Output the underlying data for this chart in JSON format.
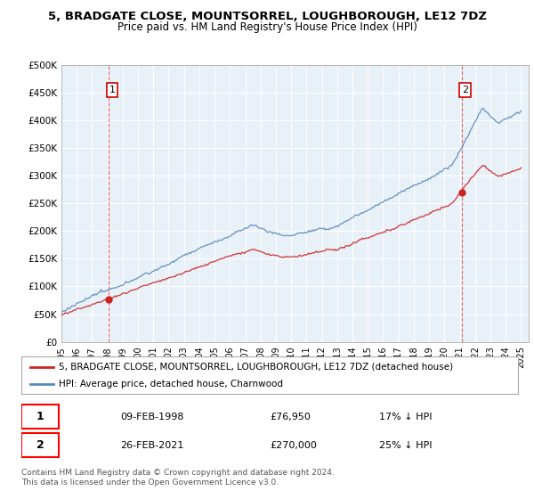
{
  "title": "5, BRADGATE CLOSE, MOUNTSORREL, LOUGHBOROUGH, LE12 7DZ",
  "subtitle": "Price paid vs. HM Land Registry's House Price Index (HPI)",
  "ylim": [
    0,
    500000
  ],
  "yticks": [
    0,
    50000,
    100000,
    150000,
    200000,
    250000,
    300000,
    350000,
    400000,
    450000,
    500000
  ],
  "ytick_labels": [
    "£0",
    "£50K",
    "£100K",
    "£150K",
    "£200K",
    "£250K",
    "£300K",
    "£350K",
    "£400K",
    "£450K",
    "£500K"
  ],
  "hpi_color": "#5588bb",
  "price_color": "#cc2222",
  "plot_bg_color": "#e8f0f8",
  "fig_bg_color": "#ffffff",
  "grid_color": "#ffffff",
  "sale1_year": 1998.1,
  "sale1_price": 76950,
  "sale2_year": 2021.15,
  "sale2_price": 270000,
  "hpi_at_sale1": 92711,
  "hpi_at_sale2": 360000,
  "legend_property": "5, BRADGATE CLOSE, MOUNTSORREL, LOUGHBOROUGH, LE12 7DZ (detached house)",
  "legend_hpi": "HPI: Average price, detached house, Charnwood",
  "annotation1_date": "09-FEB-1998",
  "annotation1_price": "£76,950",
  "annotation1_pct": "17% ↓ HPI",
  "annotation2_date": "26-FEB-2021",
  "annotation2_price": "£270,000",
  "annotation2_pct": "25% ↓ HPI",
  "footer": "Contains HM Land Registry data © Crown copyright and database right 2024.\nThis data is licensed under the Open Government Licence v3.0.",
  "title_fontsize": 9.5,
  "subtitle_fontsize": 8.5,
  "tick_fontsize": 7.5,
  "legend_fontsize": 7.5,
  "table_fontsize": 8,
  "footer_fontsize": 6.5
}
